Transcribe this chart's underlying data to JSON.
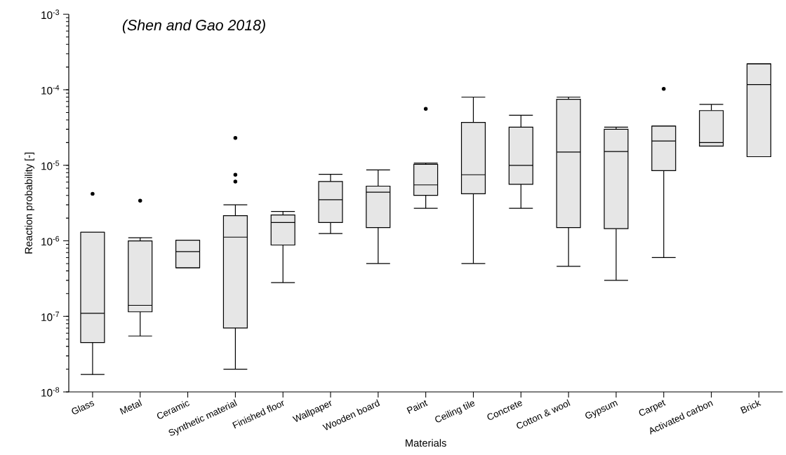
{
  "chart_data": {
    "type": "box",
    "annotations": [
      "(Shen and Gao 2018)"
    ],
    "xlabel": "Materials",
    "ylabel": "Reaction probability [-]",
    "categories": [
      "Glass",
      "Metal",
      "Ceramic",
      "Synthetic material",
      "Finished floor",
      "Wallpaper",
      "Wooden board",
      "Paint",
      "Ceiling tile",
      "Concrete",
      "Cotton & wool",
      "Gypsum",
      "Carpet",
      "Activated carbon",
      "Brick"
    ],
    "log": true,
    "ylim": [
      1e-08,
      0.001
    ],
    "yticks": [
      {
        "value": 1e-08,
        "label": "10$^{-8}$"
      },
      {
        "value": 1e-07,
        "label": "10$^{-7}$"
      },
      {
        "value": 1e-06,
        "label": "10$^{-6}$"
      },
      {
        "value": 1e-05,
        "label": "10$^{-5}$"
      },
      {
        "value": 0.0001,
        "label": "10$^{-4}$"
      },
      {
        "value": 0.001,
        "label": "10$^{-3}$"
      }
    ],
    "series": [
      {
        "color": "#e6e6e6",
        "boxes": [
          {
            "low": 1.7e-08,
            "q1": 4.5e-08,
            "median": 1.1e-07,
            "q3": 1.3e-06,
            "high": 1.3e-06,
            "outliers": [
              4.2e-06
            ]
          },
          {
            "low": 5.5e-08,
            "q1": 1.15e-07,
            "median": 1.4e-07,
            "q3": 1e-06,
            "high": 1.1e-06,
            "outliers": [
              3.4e-06
            ]
          },
          {
            "low": 4.4e-07,
            "q1": 4.4e-07,
            "median": 7.2e-07,
            "q3": 1.02e-06,
            "high": 1.02e-06
          },
          {
            "low": 2e-08,
            "q1": 7e-08,
            "median": 1.12e-06,
            "q3": 2.15e-06,
            "high": 3e-06,
            "outliers": [
              6.1e-06,
              7.5e-06,
              2.3e-05
            ]
          },
          {
            "low": 2.8e-07,
            "q1": 8.8e-07,
            "median": 1.75e-06,
            "q3": 2.2e-06,
            "high": 2.45e-06
          },
          {
            "low": 1.25e-06,
            "q1": 1.75e-06,
            "median": 3.5e-06,
            "q3": 6.1e-06,
            "high": 7.6e-06
          },
          {
            "low": 5e-07,
            "q1": 1.5e-06,
            "median": 4.4e-06,
            "q3": 5.3e-06,
            "high": 8.7e-06
          },
          {
            "low": 2.7e-06,
            "q1": 4e-06,
            "median": 5.5e-06,
            "q3": 1.03e-05,
            "high": 1.07e-05,
            "outliers": [
              5.6e-05
            ]
          },
          {
            "low": 5e-07,
            "q1": 4.2e-06,
            "median": 7.5e-06,
            "q3": 3.7e-05,
            "high": 8e-05
          },
          {
            "low": 2.7e-06,
            "q1": 5.6e-06,
            "median": 1e-05,
            "q3": 3.2e-05,
            "high": 4.6e-05
          },
          {
            "low": 4.6e-07,
            "q1": 1.5e-06,
            "median": 1.5e-05,
            "q3": 7.5e-05,
            "high": 8e-05
          },
          {
            "low": 3e-07,
            "q1": 1.45e-06,
            "median": 1.52e-05,
            "q3": 3e-05,
            "high": 3.2e-05
          },
          {
            "low": 6e-07,
            "q1": 8.5e-06,
            "median": 2.1e-05,
            "q3": 3.3e-05,
            "high": 3.3e-05,
            "outliers": [
              0.000103
            ]
          },
          {
            "low": 1.8e-05,
            "q1": 1.8e-05,
            "median": 2e-05,
            "q3": 5.3e-05,
            "high": 6.4e-05
          },
          {
            "low": 1.3e-05,
            "q1": 1.3e-05,
            "median": 0.000117,
            "q3": 0.00022,
            "high": 0.00022
          }
        ]
      }
    ]
  }
}
